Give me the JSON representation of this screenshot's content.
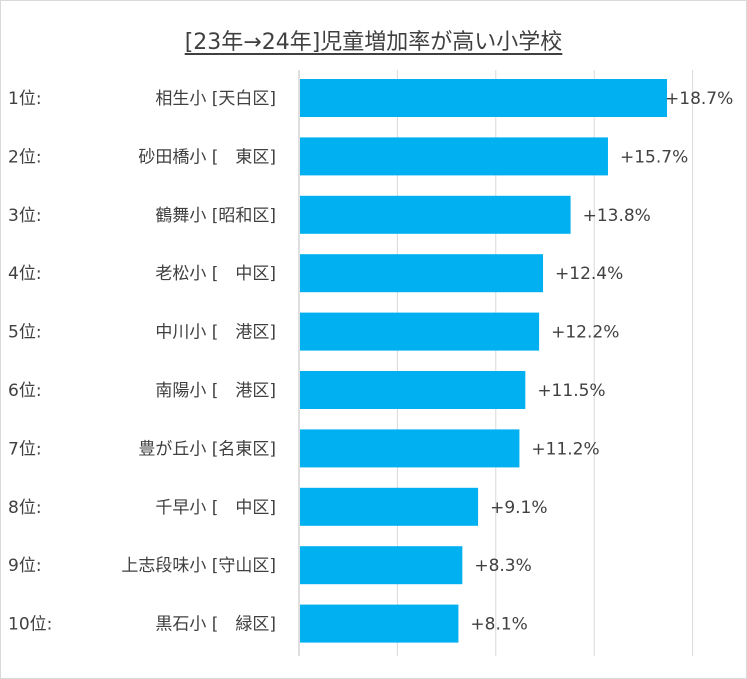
{
  "chart_data": {
    "type": "bar",
    "orientation": "horizontal",
    "title": "[23年→24年]児童増加率が高い小学校",
    "ranks": [
      "1位:",
      "2位:",
      "3位:",
      "4位:",
      "5位:",
      "6位:",
      "7位:",
      "8位:",
      "9位:",
      "10位:"
    ],
    "categories": [
      "相生小 [天白区]",
      "砂田橋小 [　東区]",
      "鶴舞小 [昭和区]",
      "老松小 [　中区]",
      "中川小 [　港区]",
      "南陽小 [　港区]",
      "豊が丘小 [名東区]",
      "千早小 [　中区]",
      "上志段味小 [守山区]",
      "黒石小 [　緑区]"
    ],
    "values": [
      18.7,
      15.7,
      13.8,
      12.4,
      12.2,
      11.5,
      11.2,
      9.1,
      8.3,
      8.1
    ],
    "data_labels": [
      "+18.7%",
      "+15.7%",
      "+13.8%",
      "+12.4%",
      "+12.2%",
      "+11.5%",
      "+11.2%",
      "+9.1%",
      "+8.3%",
      "+8.1%"
    ],
    "xlim": [
      0,
      20
    ],
    "gridlines": [
      0,
      5,
      10,
      15,
      20
    ],
    "grid": true,
    "legend": "none",
    "bar_color": "#00B0F0"
  }
}
